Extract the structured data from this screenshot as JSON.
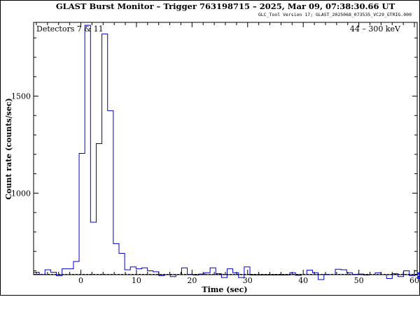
{
  "chart_data": {
    "type": "line",
    "title": "GLAST Burst Monitor  –  Trigger 763198715  –  2025, Mar 09, 07:38:30.66 UT",
    "subtitle": "GLC_Tool Version 17; GLAST_2025068_073535_VC29_GTRIG.000",
    "xlabel": "Time (sec)",
    "ylabel": "Count rate (counts/sec)",
    "annotation_left": "Detectors 7 & 11",
    "annotation_right": "44 – 300 keV",
    "xlim": [
      -8.5,
      60.5
    ],
    "ylim": [
      580,
      1880
    ],
    "x_ticks": [
      0,
      10,
      20,
      30,
      40,
      50,
      60
    ],
    "x_tick_labels": [
      "0",
      "10",
      "20",
      "30",
      "40",
      "50",
      "60"
    ],
    "y_ticks": [
      1000,
      1500
    ],
    "y_tick_labels": [
      "1000",
      "1500"
    ],
    "background_level": 582,
    "bin_width": 1.024,
    "series": [
      {
        "color": "#0000cc",
        "style": "histogram-steps",
        "x_start": -8.5,
        "values": [
          592,
          581,
          605,
          592,
          575,
          610,
          610,
          648,
          1205,
          1865,
          850,
          1255,
          1820,
          1425,
          740,
          690,
          605,
          620,
          610,
          615,
          600,
          595,
          575,
          580,
          570,
          580,
          615,
          582,
          578,
          583,
          590,
          615,
          585,
          565,
          610,
          590,
          565,
          620,
          578,
          578,
          578,
          578,
          578,
          578,
          578,
          590,
          577,
          580,
          603,
          590,
          555,
          582,
          580,
          608,
          605,
          590,
          582,
          583,
          578,
          580,
          590,
          580,
          560,
          585,
          570,
          600,
          575,
          578,
          565,
          590,
          570,
          583,
          560
        ]
      }
    ]
  }
}
